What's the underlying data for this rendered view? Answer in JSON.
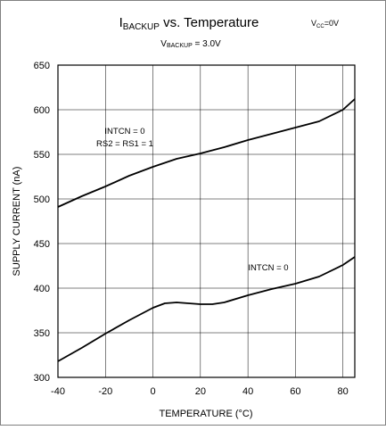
{
  "chart_data": {
    "type": "line",
    "title_main": "I",
    "title_sub": "BACKUP",
    "title_rest": " vs. Temperature",
    "vcc_main": "V",
    "vcc_sub": "CC",
    "vcc_rest": "=0V",
    "subtitle_main": "V",
    "subtitle_sub": "BACKUP",
    "subtitle_rest": " = 3.0V",
    "xlabel": "TEMPERATURE (°C)",
    "ylabel": "SUPPLY CURRENT (nA)",
    "xlim": [
      -40,
      85
    ],
    "ylim": [
      300,
      650
    ],
    "x_ticks": [
      "-40",
      "-20",
      "0",
      "20",
      "40",
      "60",
      "80"
    ],
    "y_ticks": [
      "300",
      "350",
      "400",
      "450",
      "500",
      "550",
      "600",
      "650"
    ],
    "grid": true,
    "series": [
      {
        "labels": [
          "INTCN = 0",
          "RS2 = RS1 = 1"
        ],
        "x": [
          -40,
          -30,
          -20,
          -10,
          0,
          10,
          20,
          30,
          40,
          50,
          60,
          70,
          80,
          85
        ],
        "values": [
          491,
          503,
          514,
          526,
          536,
          545,
          551,
          558,
          566,
          573,
          580,
          587,
          600,
          612
        ]
      },
      {
        "labels": [
          "INTCN = 0"
        ],
        "x": [
          -40,
          -30,
          -20,
          -10,
          0,
          5,
          10,
          15,
          20,
          25,
          30,
          40,
          50,
          60,
          70,
          80,
          85
        ],
        "values": [
          318,
          333,
          349,
          364,
          378,
          383,
          384,
          383,
          382,
          382,
          384,
          392,
          399,
          405,
          413,
          426,
          435
        ]
      }
    ]
  }
}
